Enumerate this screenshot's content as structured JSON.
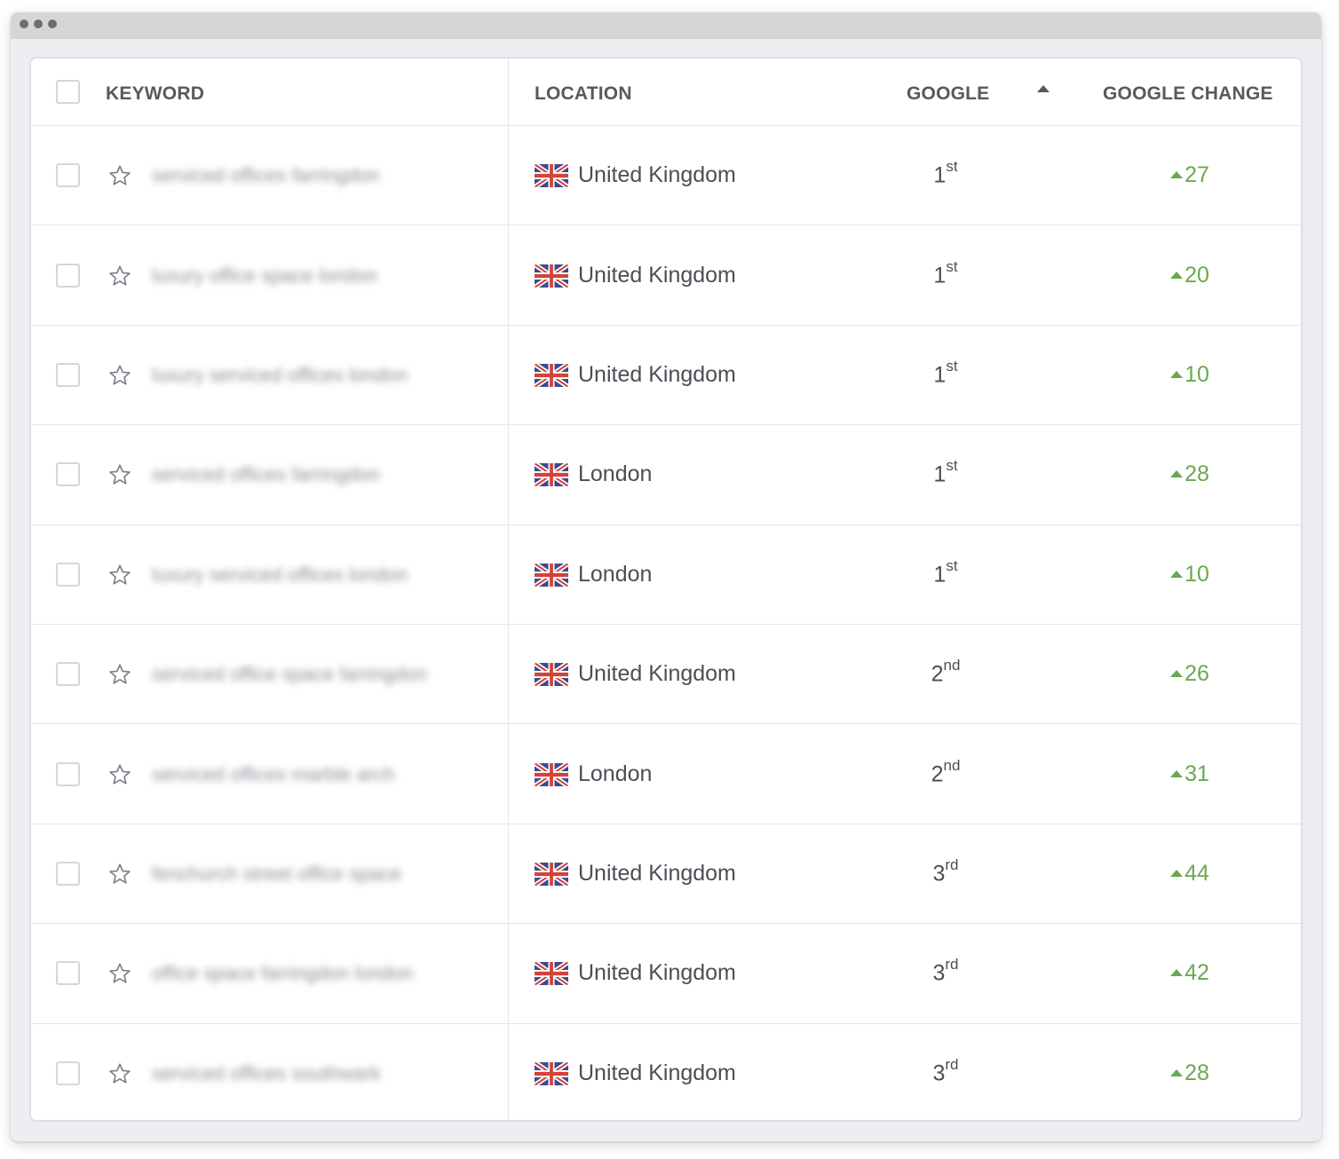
{
  "table": {
    "headers": {
      "keyword": "KEYWORD",
      "location": "LOCATION",
      "google": "GOOGLE",
      "google_change": "GOOGLE CHANGE"
    },
    "sort": {
      "column": "GOOGLE",
      "direction": "ascending"
    },
    "colors": {
      "change_positive": "#6aa84f",
      "text": "#4a4f55",
      "header": "#555a60"
    },
    "rows": [
      {
        "keyword": "serviced offices farringdon",
        "flag": "uk-flag-icon",
        "location": "United Kingdom",
        "rank": "1",
        "suffix": "st",
        "change": "27"
      },
      {
        "keyword": "luxury office space london",
        "flag": "uk-flag-icon",
        "location": "United Kingdom",
        "rank": "1",
        "suffix": "st",
        "change": "20"
      },
      {
        "keyword": "luxury serviced offices london",
        "flag": "uk-flag-icon",
        "location": "United Kingdom",
        "rank": "1",
        "suffix": "st",
        "change": "10"
      },
      {
        "keyword": "serviced offices farringdon",
        "flag": "uk-flag-icon",
        "location": "London",
        "rank": "1",
        "suffix": "st",
        "change": "28"
      },
      {
        "keyword": "luxury serviced offices london",
        "flag": "uk-flag-icon",
        "location": "London",
        "rank": "1",
        "suffix": "st",
        "change": "10"
      },
      {
        "keyword": "serviced office space farringdon",
        "flag": "uk-flag-icon",
        "location": "United Kingdom",
        "rank": "2",
        "suffix": "nd",
        "change": "26"
      },
      {
        "keyword": "serviced offices marble arch",
        "flag": "uk-flag-icon",
        "location": "London",
        "rank": "2",
        "suffix": "nd",
        "change": "31"
      },
      {
        "keyword": "fenchurch street office space",
        "flag": "uk-flag-icon",
        "location": "United Kingdom",
        "rank": "3",
        "suffix": "rd",
        "change": "44"
      },
      {
        "keyword": "office space farringdon london",
        "flag": "uk-flag-icon",
        "location": "United Kingdom",
        "rank": "3",
        "suffix": "rd",
        "change": "42"
      },
      {
        "keyword": "serviced offices southwark",
        "flag": "uk-flag-icon",
        "location": "United Kingdom",
        "rank": "3",
        "suffix": "rd",
        "change": "28"
      }
    ]
  }
}
